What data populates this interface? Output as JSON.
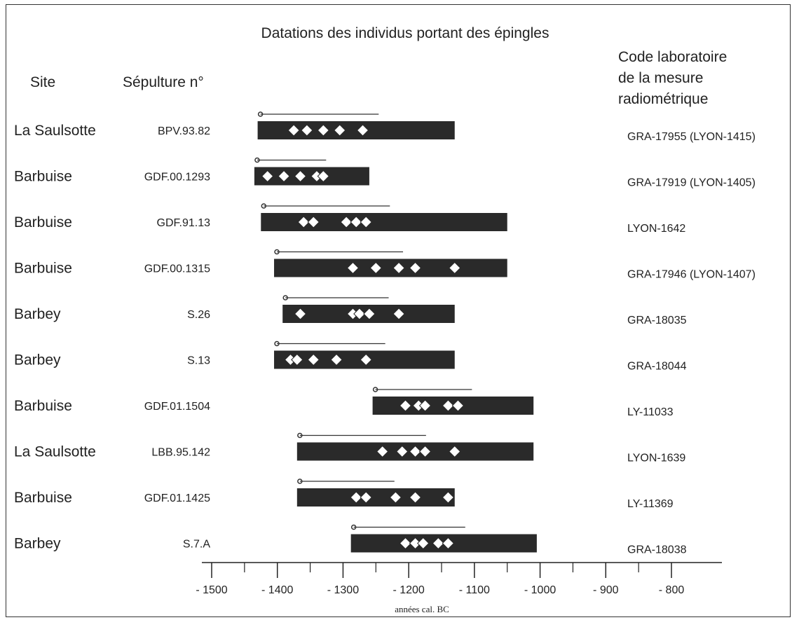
{
  "chart_data": {
    "type": "range",
    "title": "Datations des individus portant des épingles",
    "xlabel": "années cal. BC",
    "xlim": [
      -1500,
      -800
    ],
    "x_ticks": [
      -1500,
      -1400,
      -1300,
      -1200,
      -1100,
      -1000,
      -900,
      -800
    ],
    "x_tick_labels": [
      "- 1500",
      "- 1400",
      "- 1300",
      "- 1200",
      "- 1100",
      "- 1000",
      "- 900",
      "- 800"
    ],
    "column_headers": {
      "site": "Site",
      "sepulture": "Sépulture n°",
      "lab_code": [
        "Code laboratoire",
        "de la mesure",
        "radiométrique"
      ]
    },
    "rows": [
      {
        "site": "La Saulsotte",
        "sepulture": "BPV.93.82",
        "lab_code": "GRA-17955 (LYON-1415)",
        "range": [
          -1430,
          -1130
        ],
        "markers": [
          -1375,
          -1355,
          -1330,
          -1305,
          -1270
        ]
      },
      {
        "site": "Barbuise",
        "sepulture": "GDF.00.1293",
        "lab_code": "GRA-17919 (LYON-1405)",
        "range": [
          -1435,
          -1260
        ],
        "markers": [
          -1415,
          -1390,
          -1365,
          -1340,
          -1330
        ]
      },
      {
        "site": "Barbuise",
        "sepulture": "GDF.91.13",
        "lab_code": "LYON-1642",
        "range": [
          -1425,
          -1050
        ],
        "markers": [
          -1360,
          -1345,
          -1295,
          -1280,
          -1265
        ]
      },
      {
        "site": "Barbuise",
        "sepulture": "GDF.00.1315",
        "lab_code": "GRA-17946 (LYON-1407)",
        "range": [
          -1405,
          -1050
        ],
        "markers": [
          -1285,
          -1250,
          -1215,
          -1190,
          -1130
        ]
      },
      {
        "site": "Barbey",
        "sepulture": "S.26",
        "lab_code": "GRA-18035",
        "range": [
          -1392,
          -1130
        ],
        "markers": [
          -1365,
          -1285,
          -1275,
          -1260,
          -1215
        ]
      },
      {
        "site": "Barbey",
        "sepulture": "S.13",
        "lab_code": "GRA-18044",
        "range": [
          -1405,
          -1130
        ],
        "markers": [
          -1380,
          -1370,
          -1345,
          -1310,
          -1265
        ]
      },
      {
        "site": "Barbuise",
        "sepulture": "GDF.01.1504",
        "lab_code": "LY-11033",
        "range": [
          -1255,
          -1010
        ],
        "markers": [
          -1205,
          -1185,
          -1175,
          -1140,
          -1125
        ]
      },
      {
        "site": "La Saulsotte",
        "sepulture": "LBB.95.142",
        "lab_code": "LYON-1639",
        "range": [
          -1370,
          -1010
        ],
        "markers": [
          -1240,
          -1210,
          -1190,
          -1175,
          -1130
        ]
      },
      {
        "site": "Barbuise",
        "sepulture": "GDF.01.1425",
        "lab_code": "LY-11369",
        "range": [
          -1370,
          -1130
        ],
        "markers": [
          -1280,
          -1265,
          -1220,
          -1190,
          -1140
        ]
      },
      {
        "site": "Barbey",
        "sepulture": "S.7.A",
        "lab_code": "GRA-18038",
        "range": [
          -1288,
          -1005
        ],
        "markers": [
          -1205,
          -1190,
          -1178,
          -1155,
          -1140
        ]
      }
    ],
    "colors": {
      "bar": "#2a2a2a",
      "marker": "#ffffff",
      "text": "#222222"
    }
  }
}
